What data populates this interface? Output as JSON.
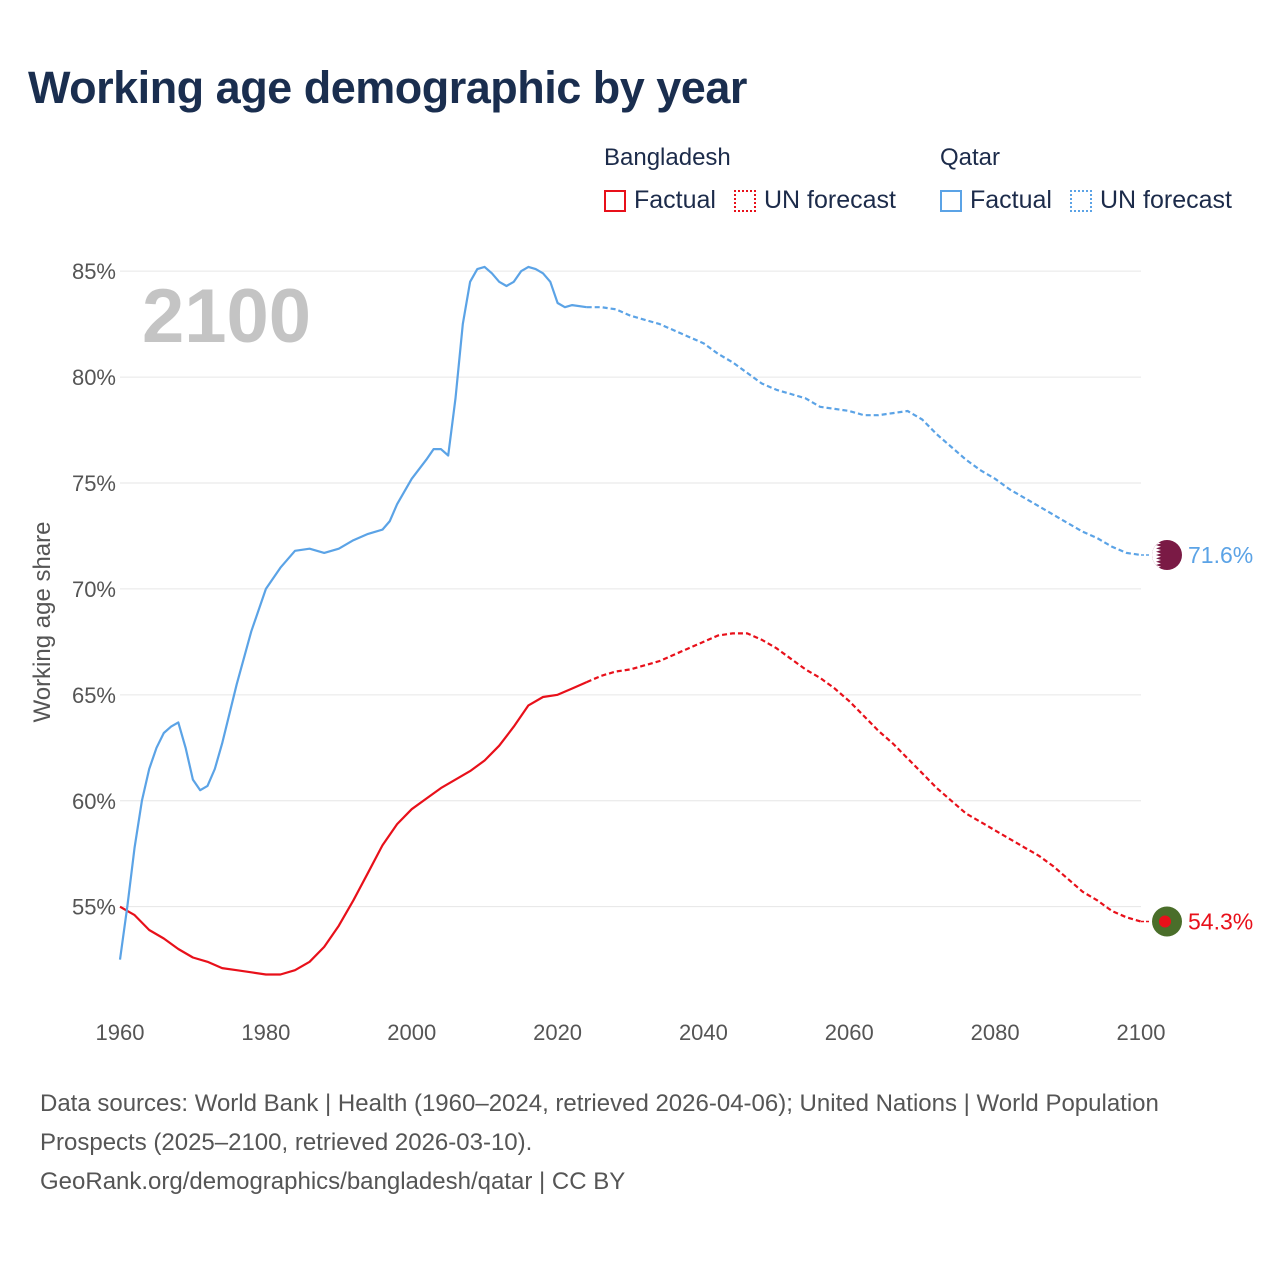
{
  "title": "Working age demographic by year",
  "legend": {
    "groups": [
      {
        "name": "Bangladesh",
        "color": "#e8101a",
        "factual": "Factual",
        "forecast": "UN forecast"
      },
      {
        "name": "Qatar",
        "color": "#5ba3e6",
        "factual": "Factual",
        "forecast": "UN forecast"
      }
    ]
  },
  "year_overlay": "2100",
  "footer": {
    "line1": "Data sources: World Bank | Health (1960–2024, retrieved 2026-04-06); United Nations | World Population Prospects (2025–2100, retrieved 2026-03-10).",
    "line2": "GeoRank.org/demographics/bangladesh/qatar | CC BY"
  },
  "chart_data": {
    "type": "line",
    "title": "Working age demographic by year",
    "xlabel": "",
    "ylabel": "Working age share",
    "xlim": [
      1960,
      2100
    ],
    "ylim": [
      50.5,
      86
    ],
    "x_ticks": [
      1960,
      1980,
      2000,
      2020,
      2040,
      2060,
      2080,
      2100
    ],
    "y_ticks": [
      55,
      60,
      65,
      70,
      75,
      80,
      85
    ],
    "y_tick_labels": [
      "55%",
      "60%",
      "65%",
      "70%",
      "75%",
      "80%",
      "85%"
    ],
    "x_tick_labels": [
      "1960",
      "1980",
      "2000",
      "2020",
      "2040",
      "2060",
      "2080",
      "2100"
    ],
    "factual_end_year": 2024,
    "series": [
      {
        "name": "Bangladesh",
        "color": "#e8101a",
        "end_label": "54.3%",
        "flag_colors": [
          "#4a6e2a",
          "#e8101a"
        ],
        "points": [
          [
            1960,
            55.0
          ],
          [
            1962,
            54.6
          ],
          [
            1964,
            53.9
          ],
          [
            1966,
            53.5
          ],
          [
            1968,
            53.0
          ],
          [
            1970,
            52.6
          ],
          [
            1972,
            52.4
          ],
          [
            1974,
            52.1
          ],
          [
            1976,
            52.0
          ],
          [
            1978,
            51.9
          ],
          [
            1980,
            51.8
          ],
          [
            1982,
            51.8
          ],
          [
            1984,
            52.0
          ],
          [
            1986,
            52.4
          ],
          [
            1988,
            53.1
          ],
          [
            1990,
            54.1
          ],
          [
            1992,
            55.3
          ],
          [
            1994,
            56.6
          ],
          [
            1996,
            57.9
          ],
          [
            1998,
            58.9
          ],
          [
            2000,
            59.6
          ],
          [
            2002,
            60.1
          ],
          [
            2004,
            60.6
          ],
          [
            2006,
            61.0
          ],
          [
            2008,
            61.4
          ],
          [
            2010,
            61.9
          ],
          [
            2012,
            62.6
          ],
          [
            2014,
            63.5
          ],
          [
            2016,
            64.5
          ],
          [
            2018,
            64.9
          ],
          [
            2020,
            65.0
          ],
          [
            2022,
            65.3
          ],
          [
            2024,
            65.6
          ],
          [
            2026,
            65.9
          ],
          [
            2028,
            66.1
          ],
          [
            2030,
            66.2
          ],
          [
            2032,
            66.4
          ],
          [
            2034,
            66.6
          ],
          [
            2036,
            66.9
          ],
          [
            2038,
            67.2
          ],
          [
            2040,
            67.5
          ],
          [
            2042,
            67.8
          ],
          [
            2044,
            67.9
          ],
          [
            2046,
            67.9
          ],
          [
            2048,
            67.6
          ],
          [
            2050,
            67.2
          ],
          [
            2052,
            66.7
          ],
          [
            2054,
            66.2
          ],
          [
            2056,
            65.8
          ],
          [
            2058,
            65.3
          ],
          [
            2060,
            64.7
          ],
          [
            2062,
            64.0
          ],
          [
            2064,
            63.3
          ],
          [
            2066,
            62.7
          ],
          [
            2068,
            62.0
          ],
          [
            2070,
            61.3
          ],
          [
            2072,
            60.6
          ],
          [
            2074,
            60.0
          ],
          [
            2076,
            59.4
          ],
          [
            2078,
            59.0
          ],
          [
            2080,
            58.6
          ],
          [
            2082,
            58.2
          ],
          [
            2084,
            57.8
          ],
          [
            2086,
            57.4
          ],
          [
            2088,
            56.9
          ],
          [
            2090,
            56.3
          ],
          [
            2092,
            55.7
          ],
          [
            2094,
            55.3
          ],
          [
            2096,
            54.8
          ],
          [
            2098,
            54.5
          ],
          [
            2100,
            54.3
          ]
        ]
      },
      {
        "name": "Qatar",
        "color": "#5ba3e6",
        "end_label": "71.6%",
        "flag_colors": [
          "#7a1a45",
          "#ffffff"
        ],
        "points": [
          [
            1960,
            52.5
          ],
          [
            1961,
            55.0
          ],
          [
            1962,
            57.8
          ],
          [
            1963,
            60.0
          ],
          [
            1964,
            61.5
          ],
          [
            1965,
            62.5
          ],
          [
            1966,
            63.2
          ],
          [
            1967,
            63.5
          ],
          [
            1968,
            63.7
          ],
          [
            1969,
            62.5
          ],
          [
            1970,
            61.0
          ],
          [
            1971,
            60.5
          ],
          [
            1972,
            60.7
          ],
          [
            1973,
            61.5
          ],
          [
            1974,
            62.7
          ],
          [
            1976,
            65.5
          ],
          [
            1978,
            68.0
          ],
          [
            1980,
            70.0
          ],
          [
            1982,
            71.0
          ],
          [
            1984,
            71.8
          ],
          [
            1986,
            71.9
          ],
          [
            1988,
            71.7
          ],
          [
            1990,
            71.9
          ],
          [
            1992,
            72.3
          ],
          [
            1994,
            72.6
          ],
          [
            1996,
            72.8
          ],
          [
            1997,
            73.2
          ],
          [
            1998,
            74.0
          ],
          [
            2000,
            75.2
          ],
          [
            2002,
            76.1
          ],
          [
            2003,
            76.6
          ],
          [
            2004,
            76.6
          ],
          [
            2005,
            76.3
          ],
          [
            2006,
            79.0
          ],
          [
            2007,
            82.5
          ],
          [
            2008,
            84.5
          ],
          [
            2009,
            85.1
          ],
          [
            2010,
            85.2
          ],
          [
            2011,
            84.9
          ],
          [
            2012,
            84.5
          ],
          [
            2013,
            84.3
          ],
          [
            2014,
            84.5
          ],
          [
            2015,
            85.0
          ],
          [
            2016,
            85.2
          ],
          [
            2017,
            85.1
          ],
          [
            2018,
            84.9
          ],
          [
            2019,
            84.5
          ],
          [
            2020,
            83.5
          ],
          [
            2021,
            83.3
          ],
          [
            2022,
            83.4
          ],
          [
            2024,
            83.3
          ],
          [
            2026,
            83.3
          ],
          [
            2028,
            83.2
          ],
          [
            2030,
            82.9
          ],
          [
            2032,
            82.7
          ],
          [
            2034,
            82.5
          ],
          [
            2036,
            82.2
          ],
          [
            2038,
            81.9
          ],
          [
            2040,
            81.6
          ],
          [
            2042,
            81.1
          ],
          [
            2044,
            80.7
          ],
          [
            2046,
            80.2
          ],
          [
            2048,
            79.7
          ],
          [
            2050,
            79.4
          ],
          [
            2052,
            79.2
          ],
          [
            2054,
            79.0
          ],
          [
            2056,
            78.6
          ],
          [
            2058,
            78.5
          ],
          [
            2060,
            78.4
          ],
          [
            2062,
            78.2
          ],
          [
            2064,
            78.2
          ],
          [
            2066,
            78.3
          ],
          [
            2068,
            78.4
          ],
          [
            2070,
            78.0
          ],
          [
            2072,
            77.3
          ],
          [
            2074,
            76.7
          ],
          [
            2076,
            76.1
          ],
          [
            2078,
            75.6
          ],
          [
            2080,
            75.2
          ],
          [
            2082,
            74.7
          ],
          [
            2084,
            74.3
          ],
          [
            2086,
            73.9
          ],
          [
            2088,
            73.5
          ],
          [
            2090,
            73.1
          ],
          [
            2092,
            72.7
          ],
          [
            2094,
            72.4
          ],
          [
            2096,
            72.0
          ],
          [
            2098,
            71.7
          ],
          [
            2100,
            71.6
          ]
        ]
      }
    ]
  }
}
